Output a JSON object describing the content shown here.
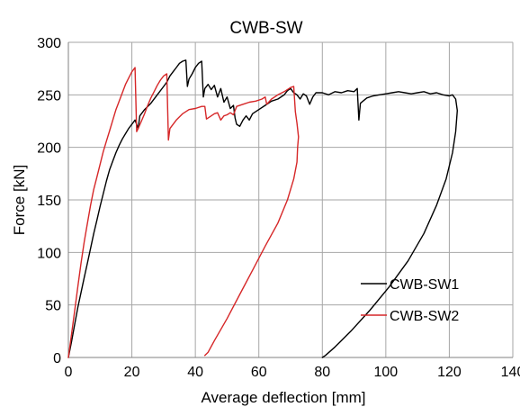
{
  "chart_data": {
    "type": "line",
    "title": "CWB-SW",
    "xlabel": "Average deflection [mm]",
    "ylabel": "Force [kN]",
    "xlim": [
      0,
      140
    ],
    "ylim": [
      0,
      300
    ],
    "x_ticks": [
      0,
      20,
      40,
      60,
      80,
      100,
      120,
      140
    ],
    "y_ticks": [
      0,
      50,
      100,
      150,
      200,
      250,
      300
    ],
    "x_tick_labels": [
      "0",
      "20",
      "40",
      "60",
      "80",
      "100",
      "120",
      "140"
    ],
    "y_tick_labels": [
      "0",
      "50",
      "100",
      "150",
      "200",
      "250",
      "300"
    ],
    "grid": true,
    "legend_position": "bottom-right",
    "series": [
      {
        "name": "CWB-SW1",
        "color": "#000000",
        "points": [
          [
            0,
            0
          ],
          [
            1,
            15
          ],
          [
            2,
            32
          ],
          [
            3,
            48
          ],
          [
            4,
            62
          ],
          [
            5,
            76
          ],
          [
            6,
            90
          ],
          [
            7,
            104
          ],
          [
            8,
            118
          ],
          [
            9,
            131
          ],
          [
            10,
            144
          ],
          [
            11,
            156
          ],
          [
            12,
            168
          ],
          [
            13,
            179
          ],
          [
            14,
            187
          ],
          [
            15,
            195
          ],
          [
            16,
            202
          ],
          [
            17,
            208
          ],
          [
            18,
            213
          ],
          [
            19,
            218
          ],
          [
            20,
            222
          ],
          [
            21,
            226
          ],
          [
            22,
            218
          ],
          [
            22.5,
            230
          ],
          [
            24,
            236
          ],
          [
            26,
            242
          ],
          [
            28,
            250
          ],
          [
            30,
            258
          ],
          [
            31,
            262
          ],
          [
            32,
            268
          ],
          [
            33,
            272
          ],
          [
            34,
            276
          ],
          [
            35,
            280
          ],
          [
            36,
            282
          ],
          [
            37,
            283
          ],
          [
            37.5,
            258
          ],
          [
            38,
            265
          ],
          [
            39,
            270
          ],
          [
            40,
            276
          ],
          [
            41,
            280
          ],
          [
            42,
            282
          ],
          [
            42.5,
            248
          ],
          [
            43,
            256
          ],
          [
            44,
            260
          ],
          [
            45,
            255
          ],
          [
            46,
            259
          ],
          [
            47,
            248
          ],
          [
            48,
            256
          ],
          [
            49,
            243
          ],
          [
            50,
            248
          ],
          [
            51,
            237
          ],
          [
            52,
            240
          ],
          [
            52.5,
            228
          ],
          [
            53,
            222
          ],
          [
            54,
            220
          ],
          [
            55,
            226
          ],
          [
            56,
            230
          ],
          [
            57,
            226
          ],
          [
            58,
            232
          ],
          [
            60,
            236
          ],
          [
            62,
            240
          ],
          [
            64,
            244
          ],
          [
            66,
            246
          ],
          [
            68,
            250
          ],
          [
            69,
            254
          ],
          [
            70,
            256
          ],
          [
            71,
            252
          ],
          [
            72,
            250
          ],
          [
            73,
            246
          ],
          [
            74,
            251
          ],
          [
            75,
            249
          ],
          [
            76,
            241
          ],
          [
            77,
            248
          ],
          [
            78,
            252
          ],
          [
            80,
            252
          ],
          [
            82,
            250
          ],
          [
            84,
            253
          ],
          [
            86,
            252
          ],
          [
            88,
            254
          ],
          [
            90,
            253
          ],
          [
            91,
            256
          ],
          [
            91.5,
            226
          ],
          [
            92,
            242
          ],
          [
            94,
            247
          ],
          [
            96,
            249
          ],
          [
            98,
            250
          ],
          [
            100,
            251
          ],
          [
            102,
            252
          ],
          [
            104,
            253
          ],
          [
            106,
            252
          ],
          [
            108,
            251
          ],
          [
            110,
            252
          ],
          [
            112,
            253
          ],
          [
            114,
            251
          ],
          [
            116,
            252
          ],
          [
            118,
            250
          ],
          [
            120,
            249
          ],
          [
            121,
            250
          ],
          [
            122,
            246
          ],
          [
            122.5,
            235
          ],
          [
            122,
            215
          ],
          [
            121,
            195
          ],
          [
            119,
            170
          ],
          [
            116,
            145
          ],
          [
            112,
            118
          ],
          [
            107,
            92
          ],
          [
            101,
            67
          ],
          [
            95,
            45
          ],
          [
            89,
            25
          ],
          [
            84,
            10
          ],
          [
            81,
            2
          ],
          [
            80,
            0
          ]
        ]
      },
      {
        "name": "CWB-SW2",
        "color": "#d62728",
        "points": [
          [
            0,
            0
          ],
          [
            1,
            22
          ],
          [
            2,
            45
          ],
          [
            3,
            68
          ],
          [
            4,
            90
          ],
          [
            5,
            110
          ],
          [
            6,
            128
          ],
          [
            7,
            145
          ],
          [
            8,
            160
          ],
          [
            9,
            172
          ],
          [
            10,
            184
          ],
          [
            11,
            196
          ],
          [
            12,
            206
          ],
          [
            13,
            216
          ],
          [
            14,
            226
          ],
          [
            15,
            236
          ],
          [
            16,
            244
          ],
          [
            17,
            252
          ],
          [
            18,
            260
          ],
          [
            19,
            266
          ],
          [
            20,
            272
          ],
          [
            21,
            276
          ],
          [
            21.5,
            215
          ],
          [
            22,
            218
          ],
          [
            23,
            225
          ],
          [
            24,
            232
          ],
          [
            25,
            240
          ],
          [
            26,
            247
          ],
          [
            27,
            253
          ],
          [
            28,
            259
          ],
          [
            29,
            264
          ],
          [
            30,
            268
          ],
          [
            31,
            270
          ],
          [
            31.5,
            207
          ],
          [
            32,
            218
          ],
          [
            34,
            226
          ],
          [
            36,
            232
          ],
          [
            38,
            236
          ],
          [
            40,
            237
          ],
          [
            42,
            239
          ],
          [
            43,
            239
          ],
          [
            43.5,
            227
          ],
          [
            45,
            230
          ],
          [
            46,
            232
          ],
          [
            47,
            233
          ],
          [
            48,
            226
          ],
          [
            49,
            230
          ],
          [
            50,
            231
          ],
          [
            51,
            233
          ],
          [
            52,
            231
          ],
          [
            53,
            239
          ],
          [
            55,
            241
          ],
          [
            57,
            243
          ],
          [
            59,
            244
          ],
          [
            61,
            246
          ],
          [
            62,
            248
          ],
          [
            62.5,
            241
          ],
          [
            64,
            246
          ],
          [
            66,
            250
          ],
          [
            68,
            253
          ],
          [
            70,
            257
          ],
          [
            71,
            258
          ],
          [
            71.5,
            234
          ],
          [
            72,
            223
          ],
          [
            72.5,
            210
          ],
          [
            72.2,
            200
          ],
          [
            72,
            186
          ],
          [
            71,
            170
          ],
          [
            69,
            150
          ],
          [
            66,
            128
          ],
          [
            62,
            106
          ],
          [
            58,
            83
          ],
          [
            54,
            60
          ],
          [
            50,
            37
          ],
          [
            46,
            16
          ],
          [
            44,
            5
          ],
          [
            43,
            2
          ]
        ]
      }
    ]
  }
}
